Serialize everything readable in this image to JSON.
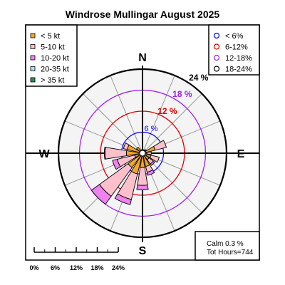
{
  "chart_data": {
    "type": "windrose",
    "title": "Windrose  Mullingar August 2025",
    "directions": [
      "N",
      "E",
      "S",
      "W"
    ],
    "speed_legend": [
      {
        "label": "< 5  kt",
        "color": "#f5a623"
      },
      {
        "label": "5-10 kt",
        "color": "#ffc0cb"
      },
      {
        "label": "10-20 kt",
        "color": "#ee82ee"
      },
      {
        "label": "20-35 kt",
        "color": "#b0e0e6"
      },
      {
        "label": "> 35 kt",
        "color": "#2e8b57"
      }
    ],
    "ring_legend": [
      {
        "label": "< 6%",
        "color": "#0000ff"
      },
      {
        "label": "6-12%",
        "color": "#dd0000"
      },
      {
        "label": "12-18%",
        "color": "#a020f0"
      },
      {
        "label": "18-24%",
        "color": "#000000"
      }
    ],
    "rings": [
      {
        "value": 6,
        "label": "6 %",
        "color": "#0000ff"
      },
      {
        "value": 12,
        "label": "12 %",
        "color": "#dd0000"
      },
      {
        "value": 18,
        "label": "18 %",
        "color": "#a020f0"
      },
      {
        "value": 24,
        "label": "24 %",
        "color": "#000000"
      }
    ],
    "rmax": 24,
    "calm_label": "Calm 0.3 %",
    "hours_label": "Tot Hours=744",
    "scale_bar_labels": [
      "0%",
      "6%",
      "12%",
      "18%",
      "24%"
    ],
    "sectors": [
      {
        "dir": 0,
        "values": [
          1.0,
          0,
          0,
          0,
          0
        ]
      },
      {
        "dir": 22.5,
        "values": [
          1.0,
          0,
          0,
          0,
          0
        ]
      },
      {
        "dir": 45,
        "values": [
          1.0,
          0.3,
          0,
          0,
          0
        ]
      },
      {
        "dir": 67.5,
        "values": [
          3.7,
          3.3,
          0,
          0,
          0
        ]
      },
      {
        "dir": 90,
        "values": [
          1.2,
          1.3,
          0,
          0,
          0
        ]
      },
      {
        "dir": 112.5,
        "values": [
          2.5,
          2.4,
          0,
          0,
          0
        ]
      },
      {
        "dir": 135,
        "values": [
          2.3,
          1.5,
          0.5,
          0,
          0
        ]
      },
      {
        "dir": 157.5,
        "values": [
          3.9,
          1.7,
          0.9,
          0,
          0
        ]
      },
      {
        "dir": 180,
        "values": [
          4.1,
          5.1,
          1.3,
          0,
          0
        ]
      },
      {
        "dir": 202.5,
        "values": [
          6.1,
          7.5,
          1.5,
          0,
          0
        ]
      },
      {
        "dir": 225,
        "values": [
          5.1,
          10.1,
          2.8,
          0,
          0
        ]
      },
      {
        "dir": 247.5,
        "values": [
          2.3,
          5.1,
          1.4,
          0,
          0
        ]
      },
      {
        "dir": 270,
        "values": [
          4.6,
          6.1,
          0.2,
          0,
          0
        ]
      },
      {
        "dir": 292.5,
        "values": [
          4.5,
          1.1,
          0,
          0,
          0
        ]
      },
      {
        "dir": 315,
        "values": [
          2.1,
          0,
          0,
          0,
          0
        ]
      },
      {
        "dir": 337.5,
        "values": [
          1.0,
          0,
          0,
          0,
          0
        ]
      }
    ]
  }
}
